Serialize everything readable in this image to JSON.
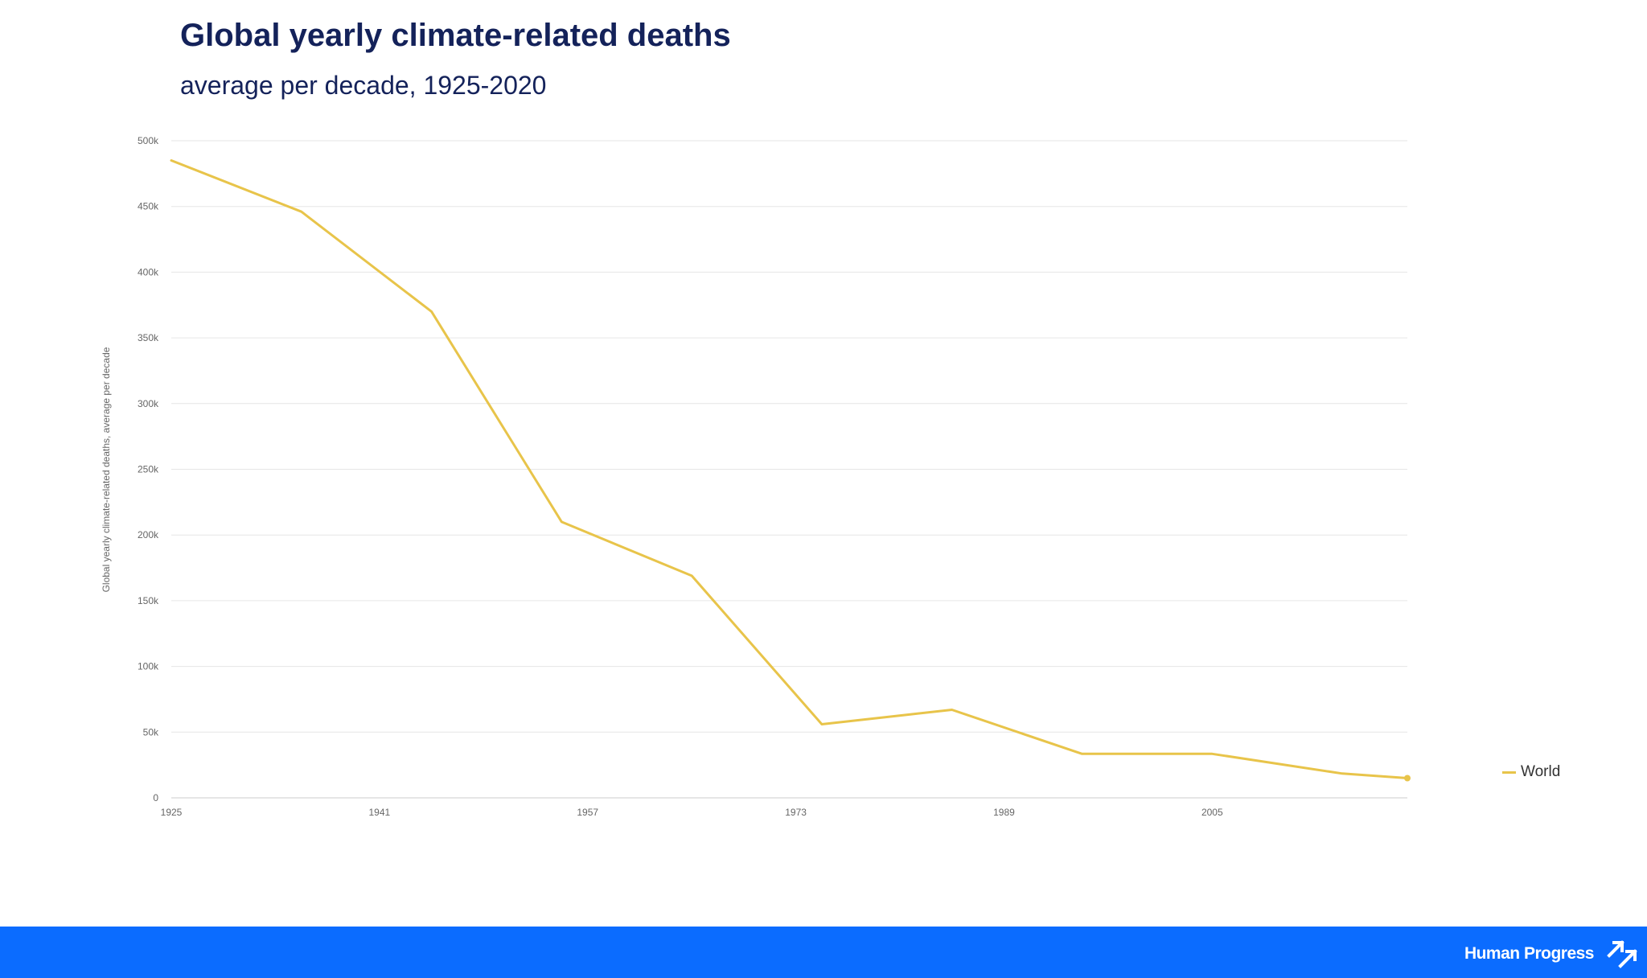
{
  "chart_data": {
    "type": "line",
    "title": "Global yearly climate-related deaths",
    "subtitle": "average per decade, 1925-2020",
    "ylabel": "Global yearly climate-related deaths, average per decade",
    "xlabel": "",
    "xlim": [
      1925,
      2020
    ],
    "ylim": [
      0,
      500000
    ],
    "x_ticks": [
      1925,
      1941,
      1957,
      1973,
      1989,
      2005
    ],
    "y_ticks": [
      0,
      50000,
      100000,
      150000,
      200000,
      250000,
      300000,
      350000,
      400000,
      450000,
      500000
    ],
    "y_tick_labels": [
      "0",
      "50k",
      "100k",
      "150k",
      "200k",
      "250k",
      "300k",
      "350k",
      "400k",
      "450k",
      "500k"
    ],
    "grid": true,
    "legend_position": "right",
    "series": [
      {
        "name": "World",
        "color": "#e8c44a",
        "x": [
          1925,
          1935,
          1945,
          1955,
          1965,
          1975,
          1985,
          1995,
          2005,
          2015,
          2020
        ],
        "values": [
          485000,
          446000,
          370000,
          210000,
          169000,
          56000,
          67000,
          33500,
          33500,
          18500,
          15000
        ]
      }
    ]
  },
  "footer": {
    "brand_name": "Human Progress",
    "brand_icon": "human-progress-logo-icon",
    "background_color": "#0b6cff"
  }
}
